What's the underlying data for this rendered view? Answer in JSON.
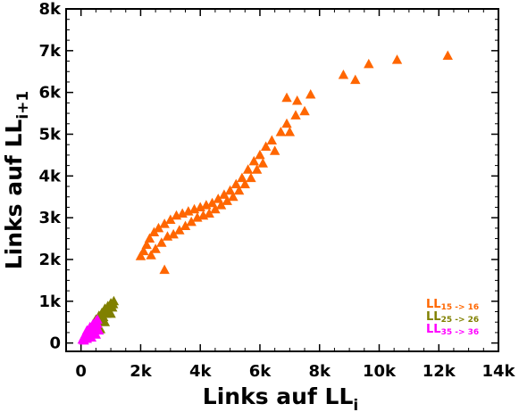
{
  "chart_data": {
    "type": "scatter",
    "title": "",
    "xlabel": {
      "main": "Links auf LL",
      "sub": "i"
    },
    "ylabel": {
      "main": "Links auf LL",
      "sub": "i+1"
    },
    "xlim": [
      -500,
      14000
    ],
    "ylim": [
      -200,
      8000
    ],
    "xticks": [
      0,
      2000,
      4000,
      6000,
      8000,
      10000,
      12000,
      14000
    ],
    "xtick_labels": [
      "0",
      "2k",
      "4k",
      "6k",
      "8k",
      "10k",
      "12k",
      "14k"
    ],
    "yticks": [
      0,
      1000,
      2000,
      3000,
      4000,
      5000,
      6000,
      7000,
      8000
    ],
    "ytick_labels": [
      "0",
      "1k",
      "2k",
      "3k",
      "4k",
      "5k",
      "6k",
      "7k",
      "8k"
    ],
    "grid": false,
    "legend_position": "bottom-right",
    "marker": "triangle",
    "series": [
      {
        "name": {
          "main": "LL",
          "sub": "15 -> 16"
        },
        "color": "#ff6600",
        "points": [
          [
            2000,
            2080
          ],
          [
            2100,
            2200
          ],
          [
            2200,
            2350
          ],
          [
            2300,
            2500
          ],
          [
            2350,
            2100
          ],
          [
            2450,
            2650
          ],
          [
            2500,
            2250
          ],
          [
            2600,
            2750
          ],
          [
            2700,
            2400
          ],
          [
            2800,
            1750
          ],
          [
            2800,
            2850
          ],
          [
            2900,
            2550
          ],
          [
            3000,
            2950
          ],
          [
            3100,
            2600
          ],
          [
            3200,
            3050
          ],
          [
            3300,
            2700
          ],
          [
            3400,
            3100
          ],
          [
            3500,
            2800
          ],
          [
            3600,
            3150
          ],
          [
            3700,
            2900
          ],
          [
            3800,
            3200
          ],
          [
            3900,
            3000
          ],
          [
            4000,
            3250
          ],
          [
            4100,
            3050
          ],
          [
            4200,
            3300
          ],
          [
            4300,
            3100
          ],
          [
            4400,
            3350
          ],
          [
            4500,
            3200
          ],
          [
            4600,
            3450
          ],
          [
            4700,
            3300
          ],
          [
            4800,
            3550
          ],
          [
            4900,
            3400
          ],
          [
            5000,
            3650
          ],
          [
            5100,
            3500
          ],
          [
            5200,
            3800
          ],
          [
            5300,
            3650
          ],
          [
            5400,
            3950
          ],
          [
            5500,
            3800
          ],
          [
            5600,
            4150
          ],
          [
            5700,
            3950
          ],
          [
            5800,
            4350
          ],
          [
            5900,
            4150
          ],
          [
            6000,
            4500
          ],
          [
            6100,
            4300
          ],
          [
            6200,
            4700
          ],
          [
            6400,
            4850
          ],
          [
            6500,
            4600
          ],
          [
            6700,
            5050
          ],
          [
            6900,
            5250
          ],
          [
            7000,
            5050
          ],
          [
            7200,
            5450
          ],
          [
            6900,
            5870
          ],
          [
            7250,
            5800
          ],
          [
            7500,
            5550
          ],
          [
            7700,
            5950
          ],
          [
            8800,
            6420
          ],
          [
            9200,
            6300
          ],
          [
            9650,
            6680
          ],
          [
            10600,
            6780
          ],
          [
            12300,
            6880
          ]
        ]
      },
      {
        "name": {
          "main": "LL",
          "sub": "25 -> 26"
        },
        "color": "#808000",
        "points": [
          [
            300,
            220
          ],
          [
            400,
            380
          ],
          [
            450,
            500
          ],
          [
            500,
            560
          ],
          [
            550,
            430
          ],
          [
            600,
            650
          ],
          [
            650,
            540
          ],
          [
            700,
            720
          ],
          [
            750,
            620
          ],
          [
            800,
            820
          ],
          [
            850,
            700
          ],
          [
            900,
            880
          ],
          [
            950,
            760
          ],
          [
            1000,
            950
          ],
          [
            1050,
            850
          ],
          [
            1100,
            1000
          ],
          [
            1000,
            700
          ],
          [
            800,
            500
          ],
          [
            650,
            330
          ],
          [
            1080,
            930
          ]
        ]
      },
      {
        "name": {
          "main": "LL",
          "sub": "35 -> 36"
        },
        "color": "#ff00ff",
        "points": [
          [
            50,
            80
          ],
          [
            100,
            150
          ],
          [
            150,
            220
          ],
          [
            200,
            300
          ],
          [
            250,
            250
          ],
          [
            300,
            380
          ],
          [
            350,
            320
          ],
          [
            400,
            450
          ],
          [
            450,
            400
          ],
          [
            500,
            520
          ],
          [
            550,
            460
          ],
          [
            600,
            300
          ],
          [
            500,
            200
          ],
          [
            350,
            130
          ],
          [
            200,
            100
          ],
          [
            100,
            60
          ],
          [
            400,
            280
          ],
          [
            550,
            560
          ]
        ]
      }
    ]
  }
}
